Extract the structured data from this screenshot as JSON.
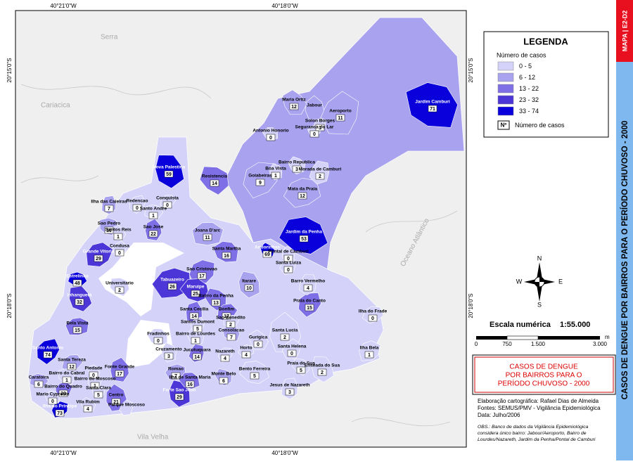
{
  "map": {
    "coords": {
      "top_left": "40°21'0\"W",
      "top_right": "40°18'0\"W",
      "bottom_left": "40°21'0\"W",
      "bottom_right": "40°18'0\"W",
      "left_top": "20°15'0\"S",
      "left_bottom": "20°18'0\"S",
      "right_top": "20°15'0\"S",
      "right_bottom": "20°18'0\"S"
    },
    "places": [
      "Serra",
      "Cariacica",
      "Vila Velha",
      "Oceano Atlântico"
    ],
    "neighborhoods": [
      {
        "name": "Jardim Camburi",
        "cases": 71,
        "class": 4
      },
      {
        "name": "Maria Ortiz",
        "cases": 12,
        "class": 1
      },
      {
        "name": "Jabour",
        "cases": null,
        "class": 1
      },
      {
        "name": "Aeroporto",
        "cases": 11,
        "class": 1
      },
      {
        "name": "Solon Borges",
        "cases": 1,
        "class": 0
      },
      {
        "name": "Seguranca do Lar",
        "cases": 0,
        "class": 0
      },
      {
        "name": "Antonio Honorio",
        "cases": 0,
        "class": 0
      },
      {
        "name": "Bairro Republica",
        "cases": 3,
        "class": 0
      },
      {
        "name": "Boa Vista",
        "cases": 1,
        "class": 0
      },
      {
        "name": "Morada de Camburi",
        "cases": 2,
        "class": 0
      },
      {
        "name": "Goiabeiras",
        "cases": 9,
        "class": 1
      },
      {
        "name": "Mata da Praia",
        "cases": 12,
        "class": 1
      },
      {
        "name": "Jardim da Penha",
        "cases": 53,
        "class": 4
      },
      {
        "name": "Resistencia",
        "cases": 14,
        "class": 2
      },
      {
        "name": "Nova Palestina",
        "cases": 59,
        "class": 4
      },
      {
        "name": "Ilha das Caieiras",
        "cases": 7,
        "class": 1
      },
      {
        "name": "Redencao",
        "cases": 0,
        "class": 0
      },
      {
        "name": "Conquista",
        "cases": 0,
        "class": 0
      },
      {
        "name": "Santo Andre",
        "cases": 1,
        "class": 0
      },
      {
        "name": "Sao Pedro",
        "cases": 10,
        "class": 1
      },
      {
        "name": "Santos Reis",
        "cases": 1,
        "class": 0
      },
      {
        "name": "Sao Jose",
        "cases": 22,
        "class": 2
      },
      {
        "name": "Condusa",
        "cases": 0,
        "class": 0
      },
      {
        "name": "Grande Vitoria",
        "cases": 29,
        "class": 3
      },
      {
        "name": "Joana D'arc",
        "cases": 11,
        "class": 1
      },
      {
        "name": "Santa Martha",
        "cases": 16,
        "class": 2
      },
      {
        "name": "Andorinhas",
        "cases": 69,
        "class": 4
      },
      {
        "name": "Pontal de Camburi",
        "cases": 0,
        "class": 0
      },
      {
        "name": "Santa Luiza",
        "cases": 0,
        "class": 0
      },
      {
        "name": "Sao Cristovao",
        "cases": 17,
        "class": 2
      },
      {
        "name": "Tabuazeiro",
        "cases": 26,
        "class": 3
      },
      {
        "name": "Maruipe",
        "cases": 25,
        "class": 3
      },
      {
        "name": "Bairro da Penha",
        "cases": 13,
        "class": 2
      },
      {
        "name": "Itarare",
        "cases": 10,
        "class": 1
      },
      {
        "name": "Barro Vermelho",
        "cases": 4,
        "class": 0
      },
      {
        "name": "Praia do Canto",
        "cases": 15,
        "class": 2
      },
      {
        "name": "Ilha do Frade",
        "cases": 0,
        "class": 0
      },
      {
        "name": "Estrelinha",
        "cases": 48,
        "class": 4
      },
      {
        "name": "Universitario",
        "cases": 2,
        "class": 0
      },
      {
        "name": "Inhanguetá",
        "cases": 32,
        "class": 3
      },
      {
        "name": "Santa Cecilia",
        "cases": 14,
        "class": 2
      },
      {
        "name": "Santos Dumont",
        "cases": 5,
        "class": 0
      },
      {
        "name": "Bonfim",
        "cases": 17,
        "class": 2
      },
      {
        "name": "Sao Benedito",
        "cases": 2,
        "class": 0
      },
      {
        "name": "Consolacao",
        "cases": 7,
        "class": 1
      },
      {
        "name": "Gurigica",
        "cases": 0,
        "class": 0
      },
      {
        "name": "Santa Lucia",
        "cases": 2,
        "class": 0
      },
      {
        "name": "Santa Helena",
        "cases": 0,
        "class": 0
      },
      {
        "name": "Ilha Bela",
        "cases": 1,
        "class": 0
      },
      {
        "name": "Bela Vista",
        "cases": 15,
        "class": 2
      },
      {
        "name": "Fradinhos",
        "cases": 0,
        "class": 0
      },
      {
        "name": "Bairro de Lourdes",
        "cases": 1,
        "class": 0
      },
      {
        "name": "Cruzamento",
        "cases": 3,
        "class": 0
      },
      {
        "name": "Jucutuquara",
        "cases": 14,
        "class": 2
      },
      {
        "name": "Nazareth",
        "cases": 4,
        "class": 0
      },
      {
        "name": "Horto",
        "cases": 4,
        "class": 0
      },
      {
        "name": "Bento Ferreira",
        "cases": 5,
        "class": 0
      },
      {
        "name": "Praia do Sua",
        "cases": 5,
        "class": 0
      },
      {
        "name": "Enseada do Sua",
        "cases": 2,
        "class": 0
      },
      {
        "name": "Jesus de Nazareth",
        "cases": 3,
        "class": 0
      },
      {
        "name": "Santo Antonio",
        "cases": 74,
        "class": 4
      },
      {
        "name": "Santa Tereza",
        "cases": 12,
        "class": 1
      },
      {
        "name": "Caratoira",
        "cases": 6,
        "class": 1
      },
      {
        "name": "Bairro do Cabral",
        "cases": 1,
        "class": 0
      },
      {
        "name": "Piedade",
        "cases": 0,
        "class": 0
      },
      {
        "name": "Fonte Grande",
        "cases": 17,
        "class": 2
      },
      {
        "name": "Bairro do Moscoso",
        "cases": 1,
        "class": 0
      },
      {
        "name": "Bairro do Quadro",
        "cases": 20,
        "class": 2
      },
      {
        "name": "Santa Clara",
        "cases": 5,
        "class": 0
      },
      {
        "name": "Mario Cypreste",
        "cases": 0,
        "class": 0
      },
      {
        "name": "Vila Rubim",
        "cases": 4,
        "class": 0
      },
      {
        "name": "Centro",
        "cases": 21,
        "class": 2
      },
      {
        "name": "Parque Moscoso",
        "cases": null,
        "class": 0
      },
      {
        "name": "Ilha do Principe",
        "cases": 73,
        "class": 4
      },
      {
        "name": "Romao",
        "cases": 7,
        "class": 1
      },
      {
        "name": "Ilha de Santa Maria",
        "cases": 16,
        "class": 2
      },
      {
        "name": "Monte Belo",
        "cases": 6,
        "class": 1
      },
      {
        "name": "Forte Sao Joao",
        "cases": 29,
        "class": 3
      }
    ]
  },
  "legend": {
    "title": "LEGENDA",
    "subtitle": "Número de casos",
    "classes": [
      {
        "label": "0 - 5",
        "color": "#d4d2f8"
      },
      {
        "label": "6 - 12",
        "color": "#a9a2ef"
      },
      {
        "label": "13 - 22",
        "color": "#7f6fe6"
      },
      {
        "label": "23 - 32",
        "color": "#4d36d8"
      },
      {
        "label": "33 - 74",
        "color": "#0a00dc"
      }
    ],
    "symbol": "Nº",
    "symbol_label": "Número de casos"
  },
  "scale": {
    "title": "Escala numérica",
    "ratio": "1:55.000",
    "ticks": [
      "0",
      "750",
      "1.500",
      "3.000"
    ],
    "unit": "m"
  },
  "title_box": [
    "CASOS DE DENGUE",
    "POR BAIRROS PARA O",
    "PERÍODO CHUVOSO - 2000"
  ],
  "credits": [
    "Elaboração cartográfica: Rafael Dias de Almeida",
    "Fontes: SEMUS/PMV - Vigilância Epidemiológica",
    "Data: Julho/2006"
  ],
  "notes": [
    "OBS.: Banco de dados da Vigilância Epidemiológica",
    "considera único bairro: Jabour/Aeroporto, Bairro de",
    "Lourdes/Nazareth, Jardim da Penha/Pontal de Camburi"
  ],
  "side": {
    "code": "MAPA | E2-D2",
    "title": "CASOS DE DENGUE POR BAIRROS PARA O PERÍODO CHUVOSO - 2000"
  }
}
